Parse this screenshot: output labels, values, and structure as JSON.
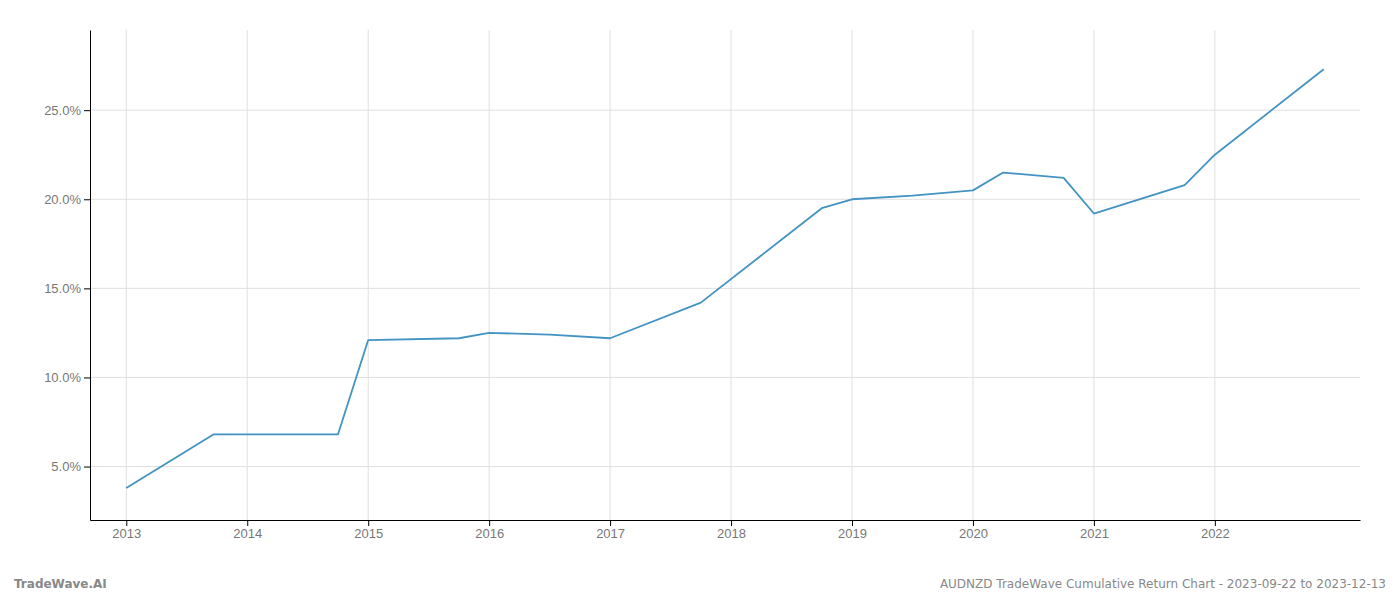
{
  "chart_data": {
    "type": "line",
    "x": [
      2013.0,
      2013.72,
      2014.75,
      2015.0,
      2015.75,
      2016.0,
      2016.5,
      2017.0,
      2017.75,
      2018.75,
      2019.0,
      2019.5,
      2020.0,
      2020.25,
      2020.75,
      2021.0,
      2021.75,
      2022.0,
      2022.9
    ],
    "values": [
      3.8,
      6.8,
      6.8,
      12.1,
      12.2,
      12.5,
      12.4,
      12.2,
      14.2,
      19.5,
      20.0,
      20.2,
      20.5,
      21.5,
      21.2,
      19.2,
      20.8,
      22.5,
      27.3
    ],
    "color": "#4393c3",
    "xlim": [
      2012.7,
      2023.2
    ],
    "xticks": [
      2013,
      2014,
      2015,
      2016,
      2017,
      2018,
      2019,
      2020,
      2021,
      2022
    ],
    "ylim": [
      2.0,
      29.5
    ],
    "yticks": [
      {
        "value": 5.0,
        "label": "5.0%"
      },
      {
        "value": 10.0,
        "label": "10.0%"
      },
      {
        "value": 15.0,
        "label": "15.0%"
      },
      {
        "value": 20.0,
        "label": "20.0%"
      },
      {
        "value": 25.0,
        "label": "25.0%"
      }
    ],
    "grid": true,
    "annotations": [
      "TradeWave.AI",
      "AUDNZD TradeWave Cumulative Return Chart - 2023-09-22 to 2023-12-13"
    ]
  }
}
